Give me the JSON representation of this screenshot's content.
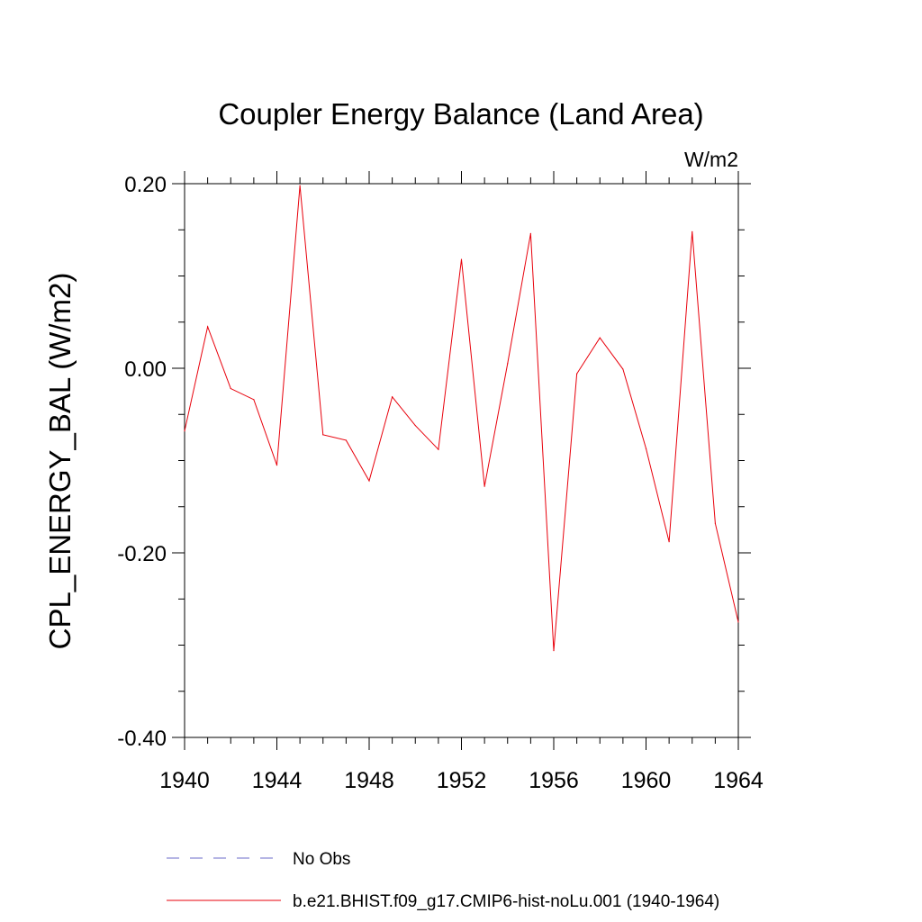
{
  "chart_data": {
    "type": "line",
    "title": "Coupler Energy Balance (Land Area)",
    "units": "W/m2",
    "ylabel": "CPL_ENERGY_BAL  (W/m2)",
    "xlabel": "",
    "xlim": [
      1940,
      1964
    ],
    "ylim": [
      -0.4,
      0.2
    ],
    "x_ticks": [
      1940,
      1944,
      1948,
      1952,
      1956,
      1960,
      1964
    ],
    "x_tick_labels": [
      "1940",
      "1944",
      "1948",
      "1952",
      "1956",
      "1960",
      "1964"
    ],
    "y_ticks": [
      -0.4,
      -0.2,
      0.0,
      0.2
    ],
    "y_tick_labels": [
      "-0.40",
      "-0.20",
      "0.00",
      "0.20"
    ],
    "grid": false,
    "legend_position": "bottom",
    "legend": [
      {
        "label": "No Obs",
        "color": "#6b6bc8",
        "style": "dashed"
      },
      {
        "label": "b.e21.BHIST.f09_g17.CMIP6-hist-noLu.001 (1940-1964)",
        "color": "#e8000b",
        "style": "solid"
      }
    ],
    "series": [
      {
        "color": "#e8000b",
        "x": [
          1940,
          1941,
          1942,
          1943,
          1944,
          1945,
          1946,
          1947,
          1948,
          1949,
          1950,
          1951,
          1952,
          1953,
          1954,
          1955,
          1956,
          1957,
          1958,
          1959,
          1960,
          1961,
          1962,
          1963,
          1964
        ],
        "values": [
          -0.068,
          0.045,
          -0.022,
          -0.034,
          -0.105,
          0.198,
          -0.072,
          -0.078,
          -0.122,
          -0.031,
          -0.062,
          -0.088,
          0.118,
          -0.128,
          0.005,
          0.146,
          -0.306,
          -0.006,
          0.033,
          -0.001,
          -0.087,
          -0.188,
          0.148,
          -0.168,
          -0.275
        ]
      }
    ]
  }
}
